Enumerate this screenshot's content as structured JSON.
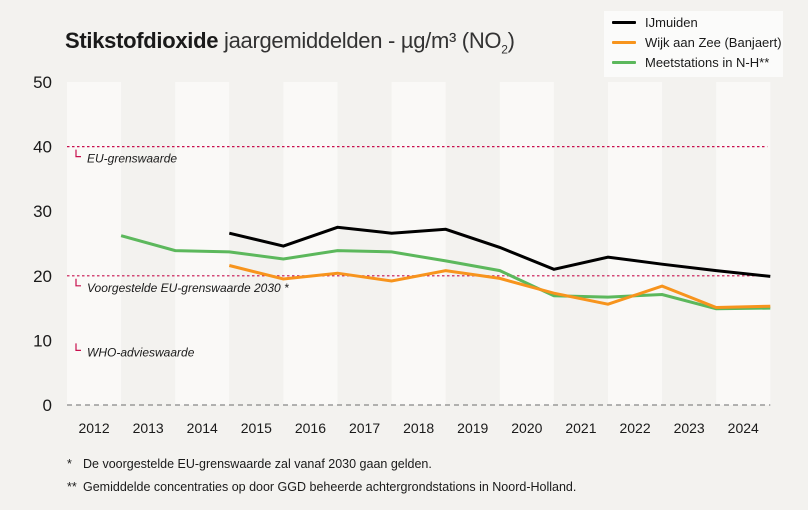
{
  "title": {
    "bold": "Stikstofdioxide",
    "rest": " jaargemiddelden - µg/m³ (NO",
    "sub": "2",
    "close": ")"
  },
  "legend": [
    {
      "name": "IJmuiden",
      "color": "#000000"
    },
    {
      "name": "Wijk aan Zee (Banjaert)",
      "color": "#f7941d"
    },
    {
      "name": "Meetstations in N-H**",
      "color": "#5cb85c"
    }
  ],
  "footnotes": [
    {
      "mark": "*",
      "text": "De voorgestelde EU-grenswaarde zal vanaf 2030 gaan gelden."
    },
    {
      "mark": "**",
      "text": "Gemiddelde concentraties op door GGD beheerde achtergrondstations in Noord-Holland."
    }
  ],
  "chart_data": {
    "type": "line",
    "title": "Stikstofdioxide jaargemiddelden - µg/m³ (NO₂)",
    "xlabel": "",
    "ylabel": "",
    "categories": [
      "2012",
      "2013",
      "2014",
      "2015",
      "2016",
      "2017",
      "2018",
      "2019",
      "2020",
      "2021",
      "2022",
      "2023",
      "2024"
    ],
    "yticks": [
      0,
      10,
      20,
      30,
      40,
      50
    ],
    "ylim": [
      0,
      50
    ],
    "grid": false,
    "legend_position": "top-right",
    "series": [
      {
        "name": "IJmuiden",
        "color": "#000000",
        "values": [
          null,
          null,
          26.6,
          24.6,
          27.5,
          26.6,
          27.2,
          24.4,
          21.0,
          22.9,
          21.8,
          20.8,
          19.9
        ]
      },
      {
        "name": "Wijk aan Zee (Banjaert)",
        "color": "#f7941d",
        "values": [
          null,
          null,
          21.6,
          19.5,
          20.4,
          19.2,
          20.8,
          19.6,
          17.3,
          15.6,
          18.4,
          15.1,
          15.3
        ]
      },
      {
        "name": "Meetstations in N-H**",
        "color": "#5cb85c",
        "values": [
          26.2,
          23.9,
          23.7,
          22.6,
          23.9,
          23.7,
          22.3,
          20.8,
          16.9,
          16.7,
          17.1,
          14.9,
          15.0
        ]
      }
    ],
    "reference_lines": [
      {
        "label": "EU-grenswaarde",
        "value": 40,
        "line": true,
        "color": "#c8104e"
      },
      {
        "label": "Voorgestelde EU-grenswaarde 2030 *",
        "value": 20,
        "line": true,
        "color": "#c8104e"
      },
      {
        "label": "WHO-advieswaarde",
        "value": 10,
        "line": false,
        "color": "#c8104e"
      }
    ]
  }
}
